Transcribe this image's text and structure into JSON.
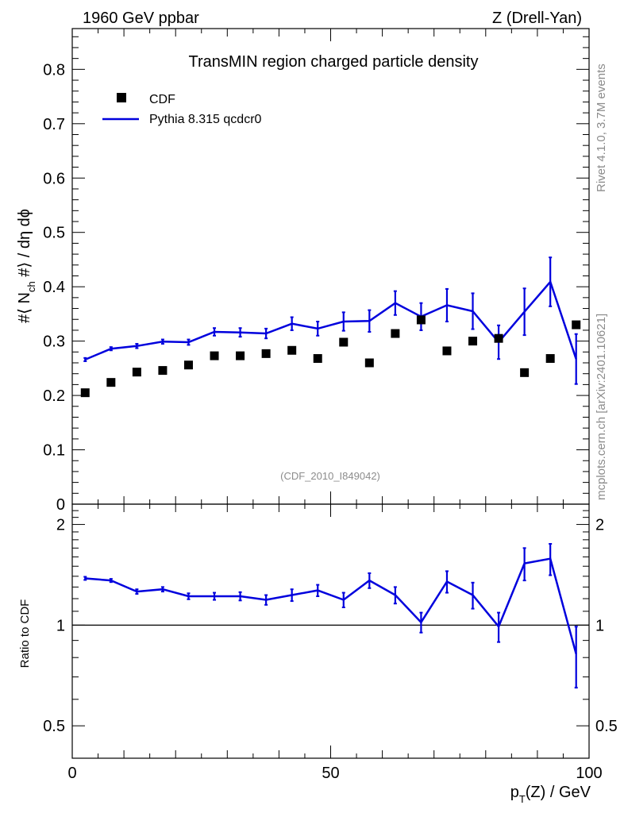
{
  "header": {
    "left": "1960 GeV ppbar",
    "right": "Z (Drell-Yan)"
  },
  "side_labels": {
    "rivet": "Rivet 4.1.0,  3.7M events",
    "mcplots": "mcplots.cern.ch [arXiv:2401.10621]"
  },
  "chart_data": [
    {
      "type": "scatter",
      "panel": "main",
      "title": "TransMIN region charged particle density",
      "reference": "(CDF_2010_I849042)",
      "ylabel_parts": {
        "a": "#",
        "b": "⟨ N",
        "c": "ch",
        "d": " #⟩ / dη dϕ"
      },
      "xlim": [
        0,
        100
      ],
      "ylim": [
        0,
        0.875
      ],
      "yticks": [
        0,
        0.1,
        0.2,
        0.3,
        0.4,
        0.5,
        0.6,
        0.7,
        0.8
      ],
      "ytick_labels": [
        "0",
        "0.1",
        "0.2",
        "0.3",
        "0.4",
        "0.5",
        "0.6",
        "0.7",
        "0.8"
      ],
      "legend": [
        "CDF",
        "Pythia 8.315 qcdcr0"
      ],
      "legend_position": "top-left",
      "x": [
        2.5,
        7.5,
        12.5,
        17.5,
        22.5,
        27.5,
        32.5,
        37.5,
        42.5,
        47.5,
        52.5,
        57.5,
        62.5,
        67.5,
        72.5,
        77.5,
        82.5,
        87.5,
        92.5,
        97.5
      ],
      "series": [
        {
          "name": "CDF",
          "style": "markers",
          "color": "#000000",
          "values": [
            0.205,
            0.224,
            0.243,
            0.246,
            0.256,
            0.273,
            0.273,
            0.277,
            0.283,
            0.268,
            0.298,
            0.26,
            0.314,
            0.339,
            0.282,
            0.3,
            0.305,
            0.242,
            0.268,
            0.33
          ]
        },
        {
          "name": "Pythia 8.315 qcdcr0",
          "style": "line",
          "color": "#0000dd",
          "values": [
            0.266,
            0.286,
            0.291,
            0.299,
            0.298,
            0.317,
            0.316,
            0.314,
            0.332,
            0.323,
            0.336,
            0.337,
            0.37,
            0.345,
            0.366,
            0.355,
            0.298,
            0.354,
            0.409,
            0.267
          ],
          "errors": [
            0.003,
            0.003,
            0.004,
            0.004,
            0.005,
            0.007,
            0.008,
            0.009,
            0.012,
            0.013,
            0.017,
            0.02,
            0.022,
            0.025,
            0.03,
            0.033,
            0.031,
            0.043,
            0.045,
            0.046
          ]
        }
      ]
    },
    {
      "type": "line",
      "panel": "ratio",
      "ylabel": "Ratio to CDF",
      "xlabel_parts": {
        "a": "p",
        "b": "T",
        "c": "(Z) / GeV"
      },
      "xlim": [
        0,
        100
      ],
      "xticks": [
        0,
        50,
        100
      ],
      "xtick_labels": [
        "0",
        "50",
        "100"
      ],
      "ylim": [
        0.4,
        2.3
      ],
      "yticks": [
        0.5,
        1,
        2
      ],
      "ytick_labels": [
        "0.5",
        "1",
        "2"
      ],
      "reference_line": 1,
      "x": [
        2.5,
        7.5,
        12.5,
        17.5,
        22.5,
        27.5,
        32.5,
        37.5,
        42.5,
        47.5,
        52.5,
        57.5,
        62.5,
        67.5,
        72.5,
        77.5,
        82.5,
        87.5,
        92.5,
        97.5
      ],
      "series": [
        {
          "name": "Pythia 8.315 qcdcr0 / CDF",
          "color": "#0000dd",
          "values": [
            1.38,
            1.36,
            1.26,
            1.28,
            1.22,
            1.22,
            1.22,
            1.19,
            1.23,
            1.27,
            1.19,
            1.36,
            1.23,
            1.02,
            1.35,
            1.23,
            0.99,
            1.53,
            1.58,
            0.82
          ],
          "errors": [
            0.015,
            0.015,
            0.02,
            0.02,
            0.025,
            0.03,
            0.035,
            0.04,
            0.05,
            0.05,
            0.06,
            0.07,
            0.07,
            0.07,
            0.1,
            0.11,
            0.1,
            0.17,
            0.17,
            0.17
          ]
        }
      ]
    }
  ]
}
